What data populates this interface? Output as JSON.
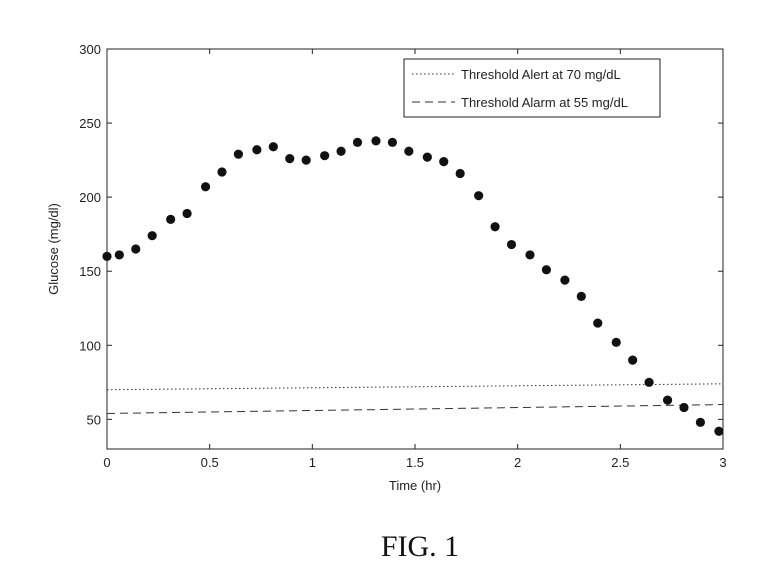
{
  "chart_data": {
    "type": "scatter",
    "title": "",
    "xlabel": "Time (hr)",
    "ylabel": "Glucose (mg/dl)",
    "xlim": [
      0,
      3
    ],
    "ylim": [
      30,
      300
    ],
    "xticks": [
      0,
      0.5,
      1,
      1.5,
      2,
      2.5,
      3
    ],
    "xtick_labels": [
      "0",
      "0.5",
      "1",
      "1.5",
      "2",
      "2.5",
      "3"
    ],
    "yticks": [
      50,
      100,
      150,
      200,
      250,
      300
    ],
    "ytick_labels": [
      "50",
      "100",
      "150",
      "200",
      "250",
      "300"
    ],
    "grid": false,
    "legend_position": "top-right",
    "series": [
      {
        "x": [
          0,
          0.06,
          0.14,
          0.22,
          0.31,
          0.39,
          0.48,
          0.56,
          0.64,
          0.73,
          0.81,
          0.89,
          0.97,
          1.06,
          1.14,
          1.22,
          1.31,
          1.39,
          1.47,
          1.56,
          1.64,
          1.72,
          1.81,
          1.89,
          1.97,
          2.06,
          2.14,
          2.23,
          2.31,
          2.39,
          2.48,
          2.56,
          2.64,
          2.73,
          2.81,
          2.89,
          2.98
        ],
        "y": [
          160,
          161,
          165,
          174,
          185,
          189,
          207,
          217,
          229,
          232,
          234,
          226,
          225,
          228,
          231,
          237,
          238,
          237,
          231,
          227,
          224,
          216,
          201,
          180,
          168,
          161,
          151,
          144,
          133,
          115,
          102,
          90,
          75,
          63,
          58,
          48,
          42
        ],
        "color": "#111111"
      }
    ],
    "reference_lines": [
      {
        "name": "Threshold Alert at 70 mg/dL",
        "y_start": 70,
        "y_end": 74,
        "style": "dotted",
        "color": "#333333"
      },
      {
        "name": "Threshold Alarm at 55 mg/dL",
        "y_start": 54,
        "y_end": 60,
        "style": "dashed",
        "color": "#333333"
      }
    ]
  },
  "caption": "FIG. 1"
}
